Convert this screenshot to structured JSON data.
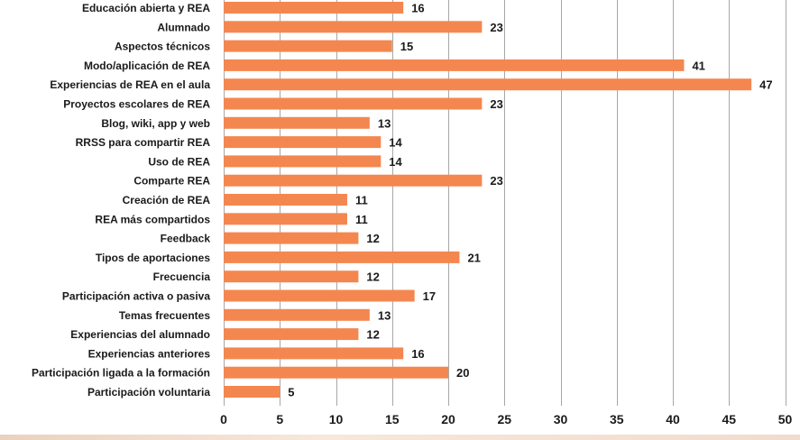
{
  "chart_data": {
    "type": "bar",
    "orientation": "horizontal",
    "title": "",
    "xlabel": "",
    "ylabel": "",
    "xlim": [
      0,
      50
    ],
    "xticks": [
      0,
      5,
      10,
      15,
      20,
      25,
      30,
      35,
      40,
      45,
      50
    ],
    "grid": true,
    "legend": "none",
    "bar_color": "#f4874f",
    "grid_color": "#a7a7a7",
    "categories": [
      "Educación abierta y REA",
      "Alumnado",
      "Aspectos técnicos",
      "Modo/aplicación de REA",
      "Experiencias de REA en el aula",
      "Proyectos escolares de REA",
      "Blog, wiki, app y web",
      "RRSS para compartir REA",
      "Uso de REA",
      "Comparte REA",
      "Creación de REA",
      "REA más compartidos",
      "Feedback",
      "Tipos de aportaciones",
      "Frecuencia",
      "Participación activa o pasiva",
      "Temas frecuentes",
      "Experiencias del alumnado",
      "Experiencias anteriores",
      "Participación ligada a la formación",
      "Participación voluntaria"
    ],
    "values": [
      16,
      23,
      15,
      41,
      47,
      23,
      13,
      14,
      14,
      23,
      11,
      11,
      12,
      21,
      12,
      17,
      13,
      12,
      16,
      20,
      5
    ]
  }
}
